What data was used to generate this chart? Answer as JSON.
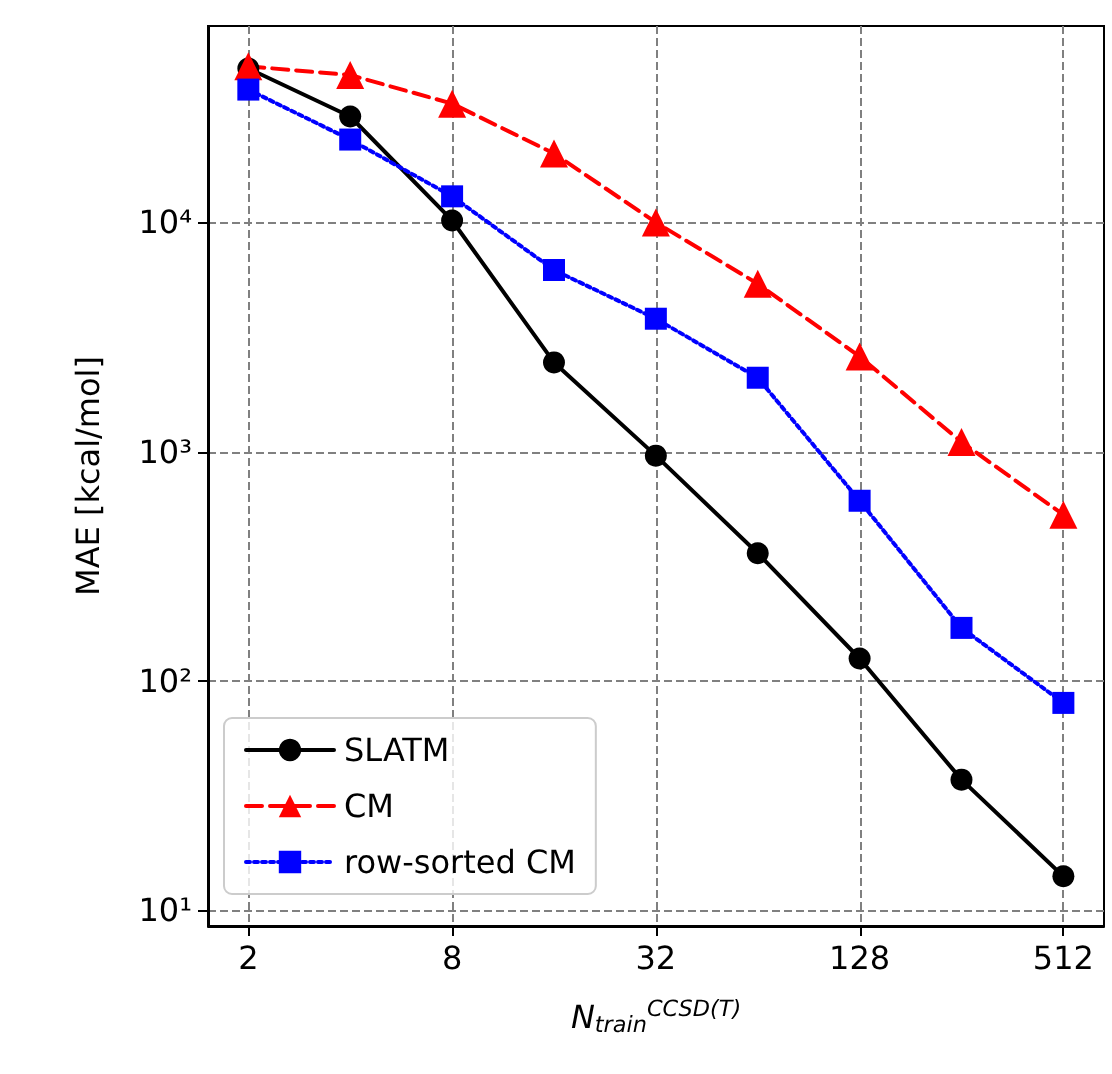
{
  "chart_data": {
    "type": "line",
    "xlabel": "N$_{train}$$^{CCSD(T)}$",
    "ylabel": "MAE [kcal/mol]",
    "x": [
      2,
      4,
      8,
      16,
      32,
      64,
      128,
      256,
      512
    ],
    "series": [
      {
        "name": "SLATM",
        "color": "#000000",
        "marker": "circle",
        "line_style": "solid",
        "values": [
          47000,
          29000,
          10200,
          2450,
          960,
          360,
          125,
          37,
          14
        ]
      },
      {
        "name": "CM",
        "color": "#ff0000",
        "marker": "triangle",
        "line_style": "dashed",
        "values": [
          48000,
          44000,
          33000,
          20000,
          10000,
          5400,
          2600,
          1100,
          530
        ]
      },
      {
        "name": "row-sorted CM",
        "color": "#0000ff",
        "marker": "square",
        "line_style": "dotted",
        "values": [
          38000,
          23000,
          13000,
          6200,
          3800,
          2100,
          610,
          170,
          80
        ]
      }
    ],
    "log": "xy",
    "xlim": [
      1.52,
      675
    ],
    "ylim": [
      8.5,
      72000
    ],
    "xticks": [
      2,
      8,
      32,
      128,
      512
    ],
    "yticks": [
      {
        "value": 10,
        "label": "10¹"
      },
      {
        "value": 100,
        "label": "10²"
      },
      {
        "value": 1000,
        "label": "10³"
      },
      {
        "value": 10000,
        "label": "10⁴"
      }
    ],
    "grid": true,
    "legend": "bottom left"
  }
}
